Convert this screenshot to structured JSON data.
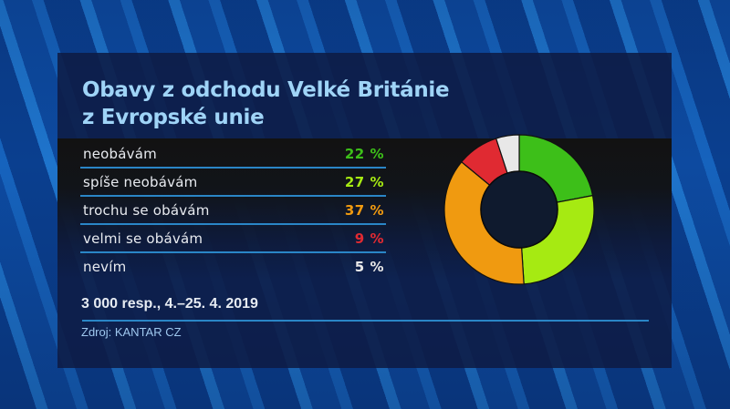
{
  "title": {
    "line1": "Obavy z odchodu Velké Británie",
    "line2": "z Evropské unie"
  },
  "rows": [
    {
      "label": "neobávám",
      "value": "22 %",
      "color": "#3dbf19"
    },
    {
      "label": "spíše neobávám",
      "value": "27 %",
      "color": "#a6ea12"
    },
    {
      "label": "trochu se obávám",
      "value": "37 %",
      "color": "#f09a10"
    },
    {
      "label": "velmi se obávám",
      "value": "9 %",
      "color": "#e02a32"
    },
    {
      "label": "nevím",
      "value": "5 %",
      "color": "#e8e8e8"
    }
  ],
  "footnote": "3 000 resp., 4.–25. 4. 2019",
  "source": "Zdroj: KANTAR CZ",
  "chart_data": {
    "type": "pie",
    "subtype": "donut",
    "title": "Obavy z odchodu Velké Británie z Evropské unie",
    "categories": [
      "neobávám",
      "spíše neobávám",
      "trochu se obávám",
      "velmi se obávám",
      "nevím"
    ],
    "values": [
      22,
      27,
      37,
      9,
      5
    ],
    "unit": "%",
    "colors": [
      "#3dbf19",
      "#a6ea12",
      "#f09a10",
      "#e02a32",
      "#e8e8e8"
    ],
    "start_angle": "12 o'clock, clockwise",
    "legend_position": "left (table)",
    "note": "3 000 resp., 4.–25. 4. 2019",
    "source": "Zdroj: KANTAR CZ"
  }
}
